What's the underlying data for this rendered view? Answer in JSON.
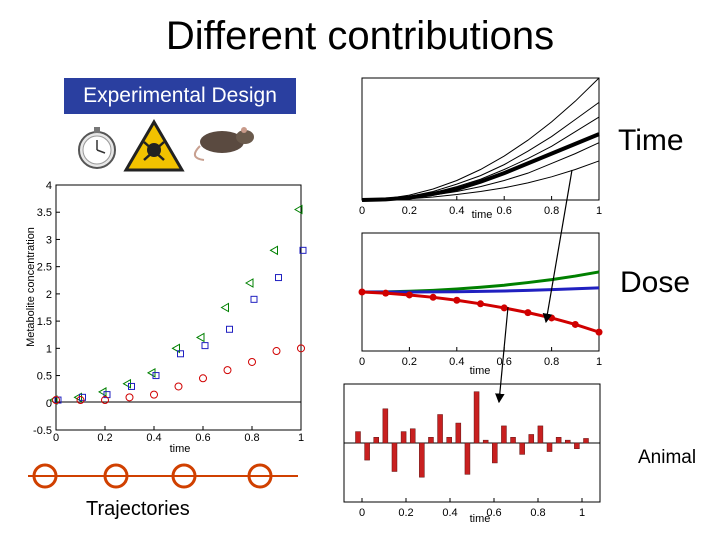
{
  "title": "Different contributions",
  "design_label": "Experimental Design",
  "design_icons": [
    "stopwatch-icon",
    "hazard-icon",
    "rat-icon"
  ],
  "labels": {
    "time": "Time",
    "dose": "Dose",
    "animal": "Animal",
    "trajectories": "Trajectories"
  },
  "colors": {
    "green": "#008000",
    "blue": "#2020c0",
    "red": "#d00000",
    "design_bg": "#2a3fa0"
  },
  "chart_data": [
    {
      "id": "main",
      "type": "scatter",
      "xlabel": "time",
      "ylabel": "Metabolite concentration",
      "xlim": [
        0,
        1
      ],
      "ylim": [
        -0.5,
        4
      ],
      "xticks": [
        "0",
        "0.2",
        "0.4",
        "0.6",
        "0.8",
        "1"
      ],
      "yticks": [
        "-0.5",
        "0",
        "0.5",
        "1",
        "1.5",
        "2",
        "2.5",
        "3",
        "3.5",
        "4"
      ],
      "series": [
        {
          "name": "green triangles",
          "color": "#008000",
          "marker": "triangle-left",
          "x": [
            0,
            0.1,
            0.2,
            0.3,
            0.4,
            0.5,
            0.6,
            0.7,
            0.8,
            0.9,
            1.0
          ],
          "values": [
            0.05,
            0.1,
            0.2,
            0.35,
            0.55,
            1.0,
            1.2,
            1.75,
            2.2,
            2.8,
            3.55
          ]
        },
        {
          "name": "blue squares",
          "color": "#2020c0",
          "marker": "square",
          "x": [
            0,
            0.1,
            0.2,
            0.3,
            0.4,
            0.5,
            0.6,
            0.7,
            0.8,
            0.9,
            1.0
          ],
          "values": [
            0.05,
            0.1,
            0.15,
            0.3,
            0.5,
            0.9,
            1.05,
            1.35,
            1.9,
            2.3,
            2.8
          ]
        },
        {
          "name": "red circles",
          "color": "#d00000",
          "marker": "circle",
          "x": [
            0,
            0.1,
            0.2,
            0.3,
            0.4,
            0.5,
            0.6,
            0.7,
            0.8,
            0.9,
            1.0
          ],
          "values": [
            0.05,
            0.05,
            0.05,
            0.1,
            0.15,
            0.3,
            0.45,
            0.6,
            0.75,
            0.95,
            1.0
          ]
        }
      ]
    },
    {
      "id": "time",
      "type": "line",
      "xlabel": "time",
      "xlim": [
        0,
        1
      ],
      "ylim": [
        0,
        1
      ],
      "xticks": [
        "0",
        "0.2",
        "0.4",
        "0.6",
        "0.8",
        "1"
      ],
      "series": [
        {
          "name": "bold",
          "width": 4,
          "values": [
            0,
            0.005,
            0.02,
            0.05,
            0.09,
            0.15,
            0.22,
            0.3,
            0.38,
            0.46,
            0.54
          ]
        },
        {
          "name": "thin 1",
          "width": 1,
          "values": [
            0,
            0.01,
            0.04,
            0.09,
            0.16,
            0.25,
            0.36,
            0.49,
            0.64,
            0.81,
            1.0
          ]
        },
        {
          "name": "thin 2",
          "width": 1,
          "values": [
            0,
            0.008,
            0.03,
            0.07,
            0.13,
            0.2,
            0.29,
            0.4,
            0.52,
            0.66,
            0.8
          ]
        },
        {
          "name": "thin 3",
          "width": 1,
          "values": [
            0,
            0.006,
            0.025,
            0.06,
            0.11,
            0.17,
            0.25,
            0.34,
            0.44,
            0.56,
            0.68
          ]
        },
        {
          "name": "thin 4",
          "width": 1,
          "values": [
            0,
            0.004,
            0.015,
            0.04,
            0.07,
            0.11,
            0.16,
            0.22,
            0.3,
            0.38,
            0.47
          ]
        },
        {
          "name": "thin 5",
          "width": 1,
          "values": [
            0,
            0.003,
            0.01,
            0.025,
            0.045,
            0.07,
            0.1,
            0.14,
            0.19,
            0.25,
            0.32
          ]
        }
      ]
    },
    {
      "id": "dose",
      "type": "line",
      "xlabel": "time",
      "xlim": [
        0,
        1
      ],
      "ylim": [
        -1,
        1
      ],
      "xticks": [
        "0",
        "0.2",
        "0.4",
        "0.6",
        "0.8",
        "1"
      ],
      "series": [
        {
          "name": "green",
          "color": "#008000",
          "values": [
            0,
            0.003,
            0.012,
            0.028,
            0.05,
            0.08,
            0.115,
            0.16,
            0.21,
            0.27,
            0.34
          ]
        },
        {
          "name": "blue",
          "color": "#2020c0",
          "values": [
            0,
            0,
            0,
            0.002,
            0.005,
            0.01,
            0.018,
            0.028,
            0.04,
            0.055,
            0.07
          ]
        },
        {
          "name": "red",
          "color": "#d00000",
          "x": [
            0,
            0.1,
            0.2,
            0.3,
            0.4,
            0.5,
            0.6,
            0.7,
            0.8,
            0.9,
            1.0
          ],
          "values": [
            0,
            -0.02,
            -0.05,
            -0.09,
            -0.14,
            -0.2,
            -0.27,
            -0.35,
            -0.44,
            -0.55,
            -0.68
          ]
        }
      ]
    },
    {
      "id": "animal",
      "type": "bar",
      "xlabel": "time",
      "xlim": [
        0,
        1
      ],
      "ylim": [
        -1,
        1
      ],
      "xticks": [
        "0",
        "0.2",
        "0.4",
        "0.6",
        "0.8",
        "1"
      ],
      "x": [
        0.0,
        0.04,
        0.08,
        0.12,
        0.16,
        0.2,
        0.24,
        0.28,
        0.32,
        0.36,
        0.4,
        0.44,
        0.48,
        0.52,
        0.56,
        0.6,
        0.64,
        0.68,
        0.72,
        0.76,
        0.8,
        0.84,
        0.88,
        0.92,
        0.96,
        1.0
      ],
      "values": [
        0.2,
        -0.3,
        0.1,
        0.6,
        -0.5,
        0.2,
        0.25,
        -0.6,
        0.1,
        0.5,
        0.1,
        0.35,
        -0.55,
        0.9,
        0.05,
        -0.35,
        0.3,
        0.1,
        -0.2,
        0.15,
        0.3,
        -0.15,
        0.1,
        0.05,
        -0.1,
        0.08
      ]
    }
  ]
}
